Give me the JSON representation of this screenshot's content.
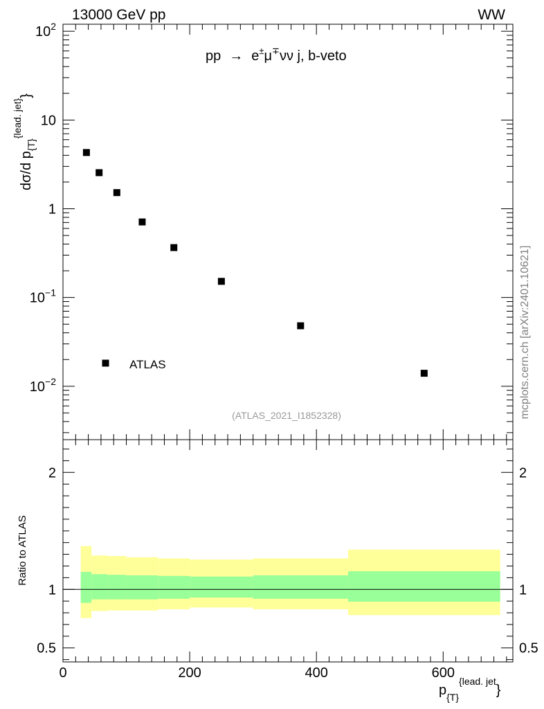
{
  "header": {
    "left": "13000 GeV pp",
    "right": "WW"
  },
  "watermark": "mcplots.cern.ch [arXiv:2401.10621]",
  "analysis_id": "(ATLAS_2021_I1852328)",
  "process": {
    "prefix": "pp",
    "arrow": "→",
    "e": "e",
    "e_charge": "±",
    "mu": "μ",
    "mu_charge": "∓",
    "suffix": "νν j, b-veto"
  },
  "legend": {
    "label": "ATLAS"
  },
  "colors": {
    "marker": "#000000",
    "band_inner": "#99ff99",
    "band_outer": "#ffff99",
    "watermark": "#7f7f7f"
  },
  "chart_data": [
    {
      "id": "main",
      "type": "scatter",
      "yscale": "log",
      "ylabel_parts": {
        "base": "dσ/d p",
        "sub": "{T}",
        "sup": "{lead. jet}",
        "close": "}"
      },
      "xlim": [
        0,
        710
      ],
      "ylim": [
        0.0025,
        120
      ],
      "yticks": [
        {
          "value": 0.01,
          "mantissa": "10",
          "exp": "−2"
        },
        {
          "value": 0.1,
          "mantissa": "10",
          "exp": "−1"
        },
        {
          "value": 1,
          "label": "1"
        },
        {
          "value": 10,
          "label": "10"
        },
        {
          "value": 100,
          "mantissa": "10",
          "exp": "2"
        }
      ],
      "series": [
        {
          "name": "ATLAS",
          "points": [
            {
              "x": 37,
              "y": 4.3
            },
            {
              "x": 57,
              "y": 2.55
            },
            {
              "x": 85,
              "y": 1.52
            },
            {
              "x": 125,
              "y": 0.71
            },
            {
              "x": 175,
              "y": 0.365
            },
            {
              "x": 250,
              "y": 0.152
            },
            {
              "x": 375,
              "y": 0.048
            },
            {
              "x": 570,
              "y": 0.014
            }
          ]
        }
      ]
    },
    {
      "id": "ratio",
      "type": "area",
      "ylabel": "Ratio to ATLAS",
      "xlabel_parts": {
        "base": "p",
        "sub": "{T}",
        "sup": "{lead. jet",
        "close": "}"
      },
      "xlim": [
        0,
        710
      ],
      "ylim": [
        0.38,
        2.28
      ],
      "xticks": [
        0,
        200,
        400,
        600
      ],
      "yticks": [
        {
          "value": 0.5,
          "label": "0.5"
        },
        {
          "value": 1,
          "label": "1"
        },
        {
          "value": 2,
          "label": "2"
        }
      ],
      "reference_line": 1,
      "bins": [
        {
          "x0": 28,
          "x1": 45,
          "inner": [
            0.885,
            1.15
          ],
          "outer": [
            0.755,
            1.37
          ]
        },
        {
          "x0": 45,
          "x1": 70,
          "inner": [
            0.915,
            1.13
          ],
          "outer": [
            0.815,
            1.29
          ]
        },
        {
          "x0": 70,
          "x1": 100,
          "inner": [
            0.915,
            1.125
          ],
          "outer": [
            0.82,
            1.285
          ]
        },
        {
          "x0": 100,
          "x1": 150,
          "inner": [
            0.915,
            1.12
          ],
          "outer": [
            0.82,
            1.275
          ]
        },
        {
          "x0": 150,
          "x1": 200,
          "inner": [
            0.92,
            1.115
          ],
          "outer": [
            0.83,
            1.265
          ]
        },
        {
          "x0": 200,
          "x1": 300,
          "inner": [
            0.93,
            1.11
          ],
          "outer": [
            0.845,
            1.255
          ]
        },
        {
          "x0": 300,
          "x1": 450,
          "inner": [
            0.92,
            1.12
          ],
          "outer": [
            0.83,
            1.265
          ]
        },
        {
          "x0": 450,
          "x1": 690,
          "inner": [
            0.895,
            1.155
          ],
          "outer": [
            0.78,
            1.34
          ]
        }
      ]
    }
  ]
}
